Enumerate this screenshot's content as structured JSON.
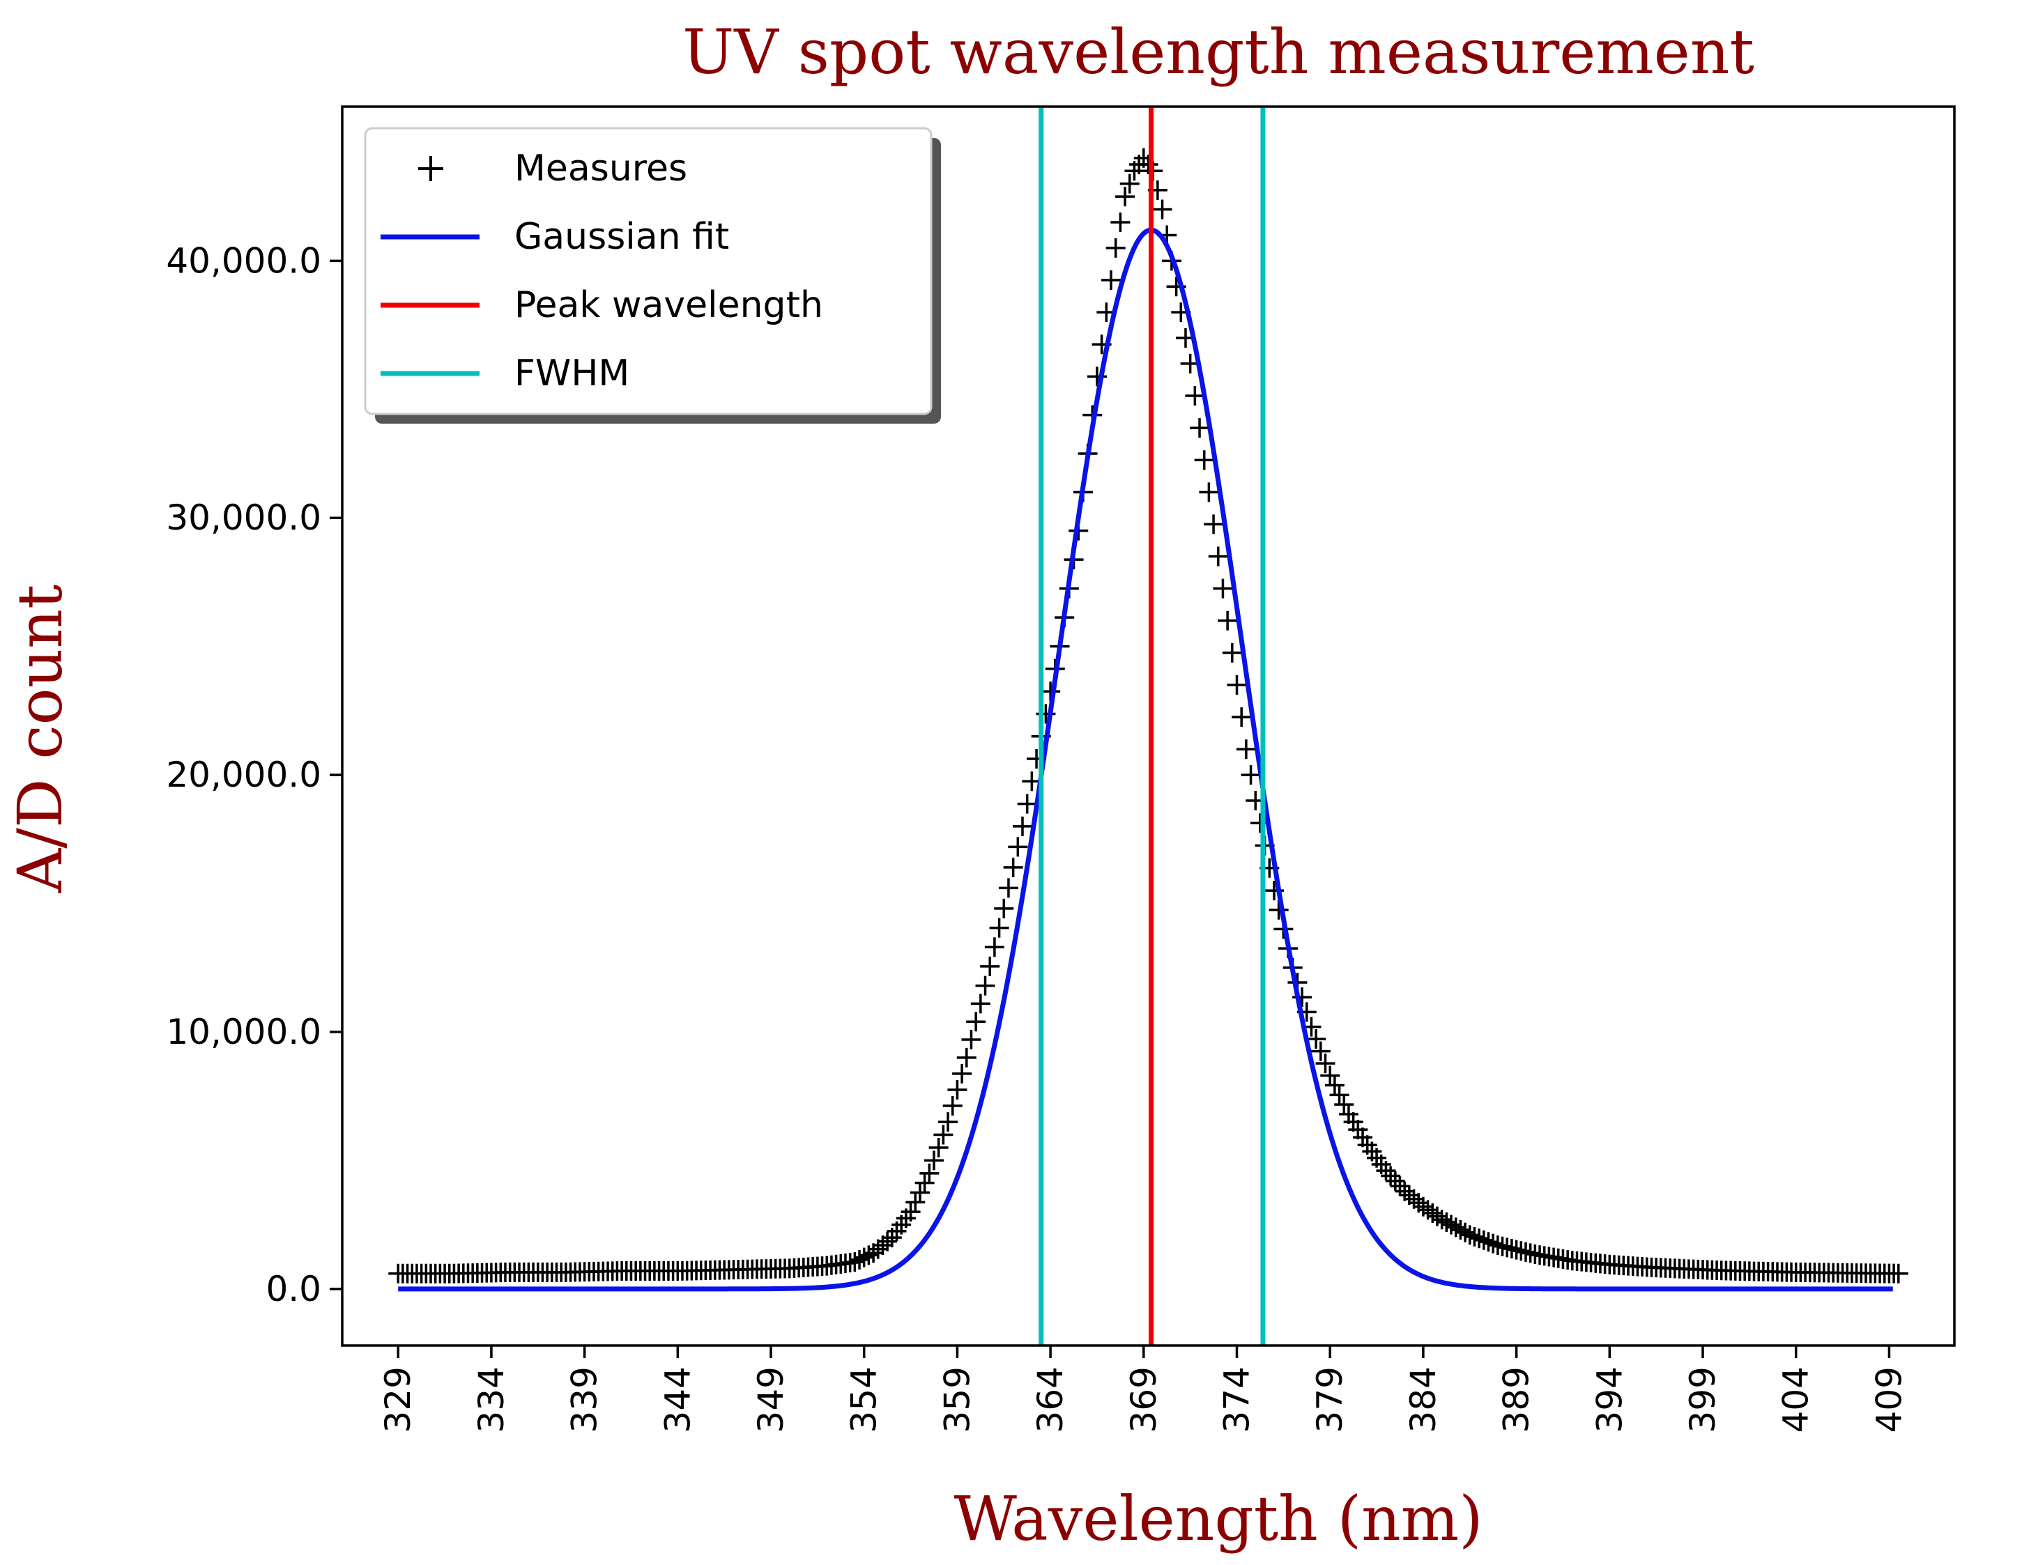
{
  "colors": {
    "title": "#8b0000",
    "measures": "#000000",
    "gaussian": "#0a14e6",
    "peak": "#f00000",
    "fwhm": "#00bebe",
    "axis": "#000000"
  },
  "chart_data": {
    "type": "line",
    "title": "UV spot wavelength measurement",
    "xlabel": "Wavelength (nm)",
    "ylabel": "A/D count",
    "xlim": [
      326.0,
      412.5
    ],
    "ylim": [
      -2200,
      46000
    ],
    "x_ticks": [
      329,
      334,
      339,
      344,
      349,
      354,
      359,
      364,
      369,
      374,
      379,
      384,
      389,
      394,
      399,
      404,
      409
    ],
    "x_tick_labels": [
      "329",
      "334",
      "339",
      "344",
      "349",
      "354",
      "359",
      "364",
      "369",
      "374",
      "379",
      "384",
      "389",
      "394",
      "399",
      "404",
      "409"
    ],
    "y_ticks": [
      0,
      10000,
      20000,
      30000,
      40000
    ],
    "y_tick_labels": [
      "0.0",
      "10,000.0",
      "20,000.0",
      "30,000.0",
      "40,000.0"
    ],
    "legend": {
      "position": "top-left",
      "entries": [
        {
          "label": "Measures",
          "marker": "plus",
          "color": "#000000"
        },
        {
          "label": "Gaussian fit",
          "marker": "line",
          "color": "#0a14e6"
        },
        {
          "label": "Peak wavelength",
          "marker": "line",
          "color": "#f00000"
        },
        {
          "label": "FWHM",
          "marker": "line",
          "color": "#00bebe"
        }
      ]
    },
    "series": [
      {
        "name": "Measures",
        "kind": "scatter",
        "marker": "plus",
        "x": [
          329.0,
          332.0,
          335.0,
          338.0,
          341.0,
          344.0,
          347.0,
          350.0,
          352.0,
          353.5,
          354.5,
          355.5,
          356.5,
          357.5,
          358.5,
          359.5,
          360.5,
          361.5,
          362.5,
          363.5,
          364.5,
          365.5,
          366.0,
          366.5,
          367.0,
          367.5,
          368.0,
          368.5,
          369.0,
          369.5,
          370.0,
          370.5,
          371.0,
          371.5,
          372.0,
          372.5,
          373.0,
          373.5,
          374.0,
          374.5,
          375.0,
          376.0,
          377.0,
          378.0,
          379.0,
          380.0,
          381.0,
          382.0,
          383.0,
          384.0,
          385.0,
          386.5,
          388.0,
          390.0,
          392.0,
          394.0,
          396.0,
          398.0,
          400.0,
          402.0,
          404.0,
          406.0,
          408.0,
          409.5
        ],
        "y": [
          600,
          600,
          650,
          650,
          700,
          700,
          750,
          800,
          900,
          1050,
          1400,
          2000,
          3000,
          4500,
          6500,
          9000,
          11800,
          14800,
          18000,
          21500,
          25000,
          29500,
          32500,
          35500,
          38000,
          40500,
          42500,
          43500,
          44000,
          43500,
          42000,
          40000,
          38000,
          36000,
          33500,
          31000,
          28500,
          26000,
          23500,
          21000,
          19000,
          15500,
          12500,
          10200,
          8300,
          6800,
          5600,
          4600,
          3800,
          3200,
          2700,
          2100,
          1700,
          1350,
          1100,
          950,
          850,
          780,
          720,
          680,
          650,
          630,
          610,
          600
        ]
      },
      {
        "name": "Gaussian fit",
        "kind": "line",
        "amplitude": 41200,
        "center": 369.4,
        "sigma": 4.9,
        "x_range": [
          329,
          409.2
        ]
      },
      {
        "name": "Peak wavelength",
        "kind": "vline",
        "x": 369.4
      },
      {
        "name": "FWHM",
        "kind": "vlines",
        "x": [
          363.5,
          375.4
        ]
      }
    ]
  }
}
